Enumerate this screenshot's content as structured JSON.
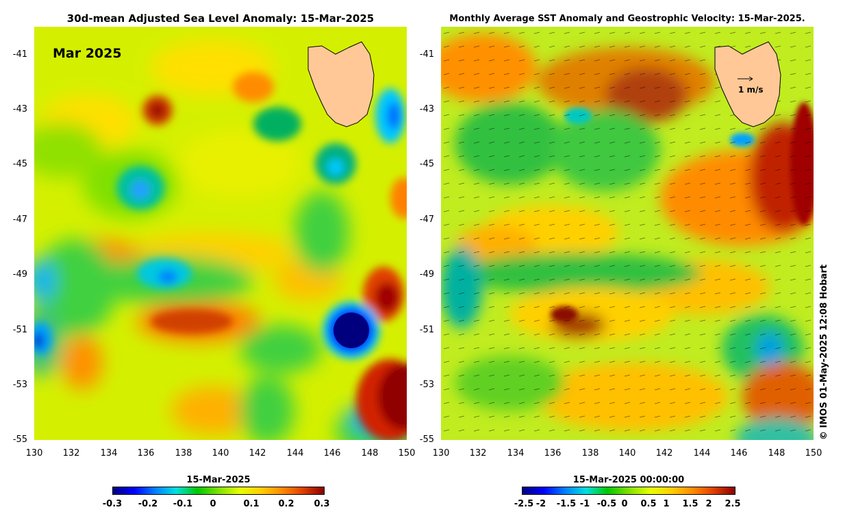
{
  "left_panel": {
    "title": "30d-mean Adjusted Sea Level Anomaly: 15-Mar-2025",
    "month_label": "Mar 2025",
    "colorbar_title": "15-Mar-2025",
    "colorbar_ticks": [
      "-0.3",
      "-0.2",
      "-0.1",
      "0",
      "0.1",
      "0.2",
      "0.3"
    ]
  },
  "right_panel": {
    "title": "Monthly Average SST Anomaly  and Geostrophic Velocity: 15-Mar-2025.",
    "scale_label": "1 m/s",
    "colorbar_title": "15-Mar-2025 00:00:00",
    "colorbar_ticks": [
      "-2.5",
      "-2",
      "-1.5",
      "-1",
      "-0.5",
      "0",
      "0.5",
      "1",
      "1.5",
      "2",
      "2.5"
    ]
  },
  "axes": {
    "lat_ticks": [
      "-41",
      "-43",
      "-45",
      "-47",
      "-49",
      "-51",
      "-53",
      "-55"
    ],
    "lon_ticks": [
      "130",
      "132",
      "134",
      "136",
      "138",
      "140",
      "142",
      "144",
      "146",
      "148",
      "150"
    ],
    "lat_range": [
      -55,
      -40
    ],
    "lon_range": [
      130,
      150
    ]
  },
  "credit": "© IMOS 01-May-2025 12:08 Hobart",
  "colors": {
    "land": "#ffc896",
    "colormap": [
      "#00007f",
      "#0000ff",
      "#00a0ff",
      "#00e0e0",
      "#00c800",
      "#7fe000",
      "#e6ff00",
      "#ffd000",
      "#ff8c00",
      "#e04000",
      "#8b0000"
    ]
  }
}
